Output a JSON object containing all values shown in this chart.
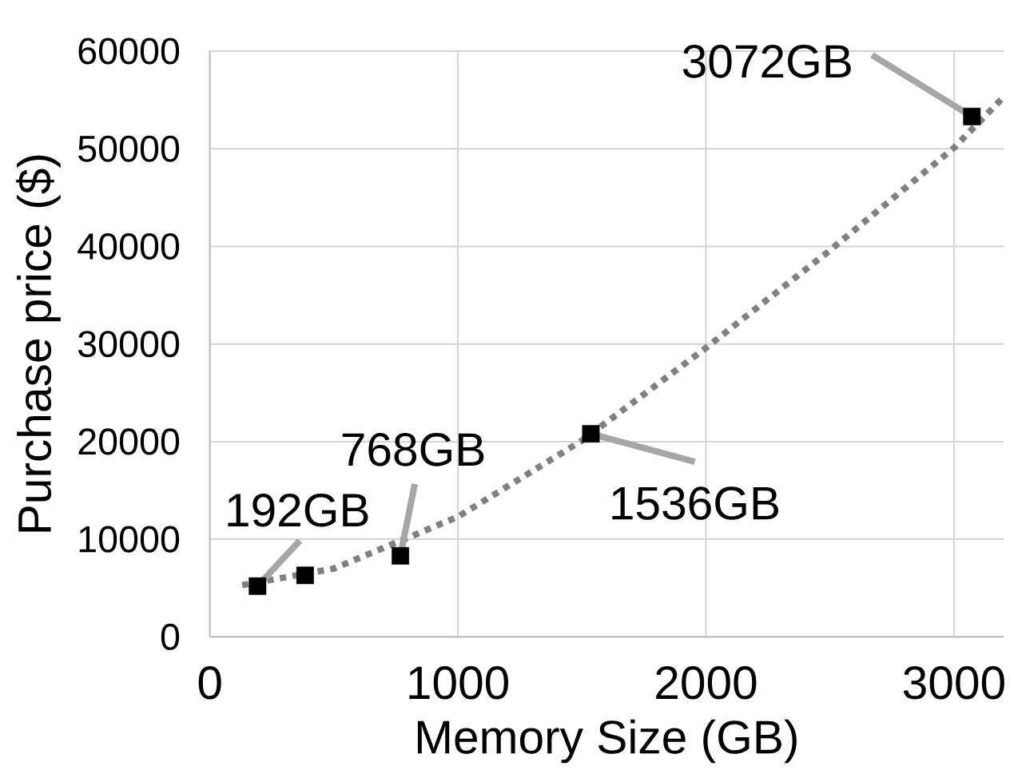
{
  "chart_data": {
    "type": "scatter",
    "xlabel": "Memory Size (GB)",
    "ylabel": "Purchase price ($)",
    "xlim": [
      0,
      3200
    ],
    "ylim": [
      0,
      60000
    ],
    "xticks": [
      0,
      1000,
      2000,
      3000
    ],
    "yticks": [
      0,
      10000,
      20000,
      30000,
      40000,
      50000,
      60000
    ],
    "grid": true,
    "series": [
      {
        "type": "scatter",
        "color": "#000000",
        "marker": "square",
        "x": [
          192,
          384,
          768,
          1536,
          3072
        ],
        "values": [
          5200,
          6300,
          8300,
          20800,
          53300
        ]
      },
      {
        "type": "line",
        "color": "#808080",
        "line_style": "dotted",
        "marker": "none",
        "x": [
          130,
          500,
          1000,
          1500,
          2000,
          2500,
          3000,
          3200
        ],
        "values": [
          5300,
          7000,
          12300,
          20100,
          29600,
          39600,
          50100,
          55300
        ]
      }
    ],
    "annotations": [
      {
        "text": "192GB",
        "x": 192,
        "y": 5200
      },
      {
        "text": "768GB",
        "x": 768,
        "y": 8300
      },
      {
        "text": "1536GB",
        "x": 1536,
        "y": 20800
      },
      {
        "text": "3072GB",
        "x": 3072,
        "y": 53300
      }
    ]
  }
}
